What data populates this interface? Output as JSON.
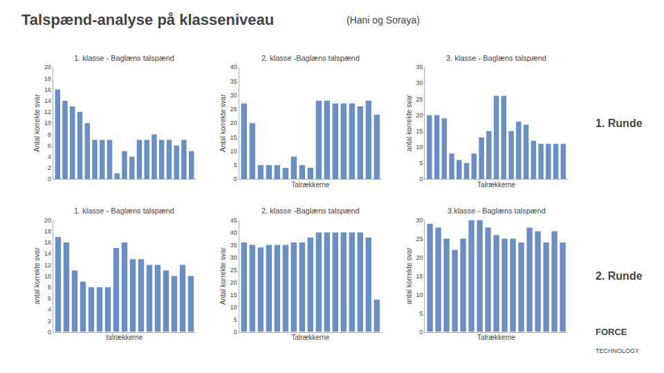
{
  "title": "Talspænd-analyse på klasseniveau",
  "subtitle": "(Hani og Soraya)",
  "annotations": [
    "1. Runde",
    "2. Runde",
    "FORCE",
    "TECHNOLOGY"
  ],
  "chart_data": [
    {
      "type": "bar",
      "title": "1. klasse - Baglæns talspænd",
      "ylabel": "Antal korrekte svar",
      "categories": [
        null,
        null,
        null,
        null,
        null,
        null,
        null,
        null,
        null,
        null,
        null,
        null,
        null,
        null,
        null,
        null,
        null,
        null,
        null
      ],
      "values": [
        16,
        14,
        13,
        12,
        10,
        7,
        7,
        7,
        1,
        5,
        4,
        7,
        7,
        8,
        7,
        7,
        6,
        7,
        5
      ],
      "color": "#6b8fc2",
      "ylim": [
        0,
        20
      ],
      "yticks": [
        0,
        2,
        4,
        6,
        8,
        10,
        12,
        14,
        16,
        18,
        20
      ],
      "grid": false,
      "tick_labels": "y"
    },
    {
      "type": "bar",
      "title": "2. klasse -Baglæns talspænd",
      "ylabel": "Antal korrekte svar",
      "xlabel": "Talrækkerne",
      "categories": [
        null,
        null,
        null,
        null,
        null,
        null,
        null,
        null,
        null,
        null,
        null,
        null,
        null,
        null,
        null,
        null,
        null
      ],
      "values": [
        27,
        20,
        5,
        5,
        5,
        4,
        8,
        5,
        4,
        28,
        28,
        27,
        27,
        27,
        26,
        28,
        23
      ],
      "color": "#6b8fc2",
      "ylim": [
        0,
        40
      ],
      "yticks": [
        0,
        5,
        10,
        15,
        20,
        25,
        30,
        35,
        40
      ],
      "grid": false,
      "tick_labels": "y"
    },
    {
      "type": "bar",
      "title": "3. klasse - Baglæns talspænd",
      "ylabel": "antal korrekte svar",
      "xlabel": "Talrækkerne",
      "categories": [
        null,
        null,
        null,
        null,
        null,
        null,
        null,
        null,
        null,
        null,
        null,
        null,
        null,
        null,
        null,
        null,
        null,
        null,
        null
      ],
      "values": [
        20,
        20,
        19,
        8,
        6,
        5,
        8,
        13,
        15,
        26,
        26,
        15,
        18,
        17,
        12,
        11,
        11,
        11,
        11
      ],
      "color": "#6b8fc2",
      "ylim": [
        0,
        35
      ],
      "yticks": [
        0,
        5,
        10,
        15,
        20,
        25,
        30,
        35
      ],
      "grid": false,
      "tick_labels": "y"
    },
    {
      "type": "bar",
      "title": "1. klasse - Baglæns talspænd",
      "ylabel": "antal korrekte svar",
      "xlabel": "talrækkerne",
      "categories": [
        null,
        null,
        null,
        null,
        null,
        null,
        null,
        null,
        null,
        null,
        null,
        null,
        null,
        null,
        null,
        null,
        null
      ],
      "values": [
        17,
        16,
        11,
        9,
        8,
        8,
        8,
        15,
        16,
        13,
        13,
        12,
        12,
        11,
        10,
        12,
        10
      ],
      "color": "#6b8fc2",
      "ylim": [
        0,
        20
      ],
      "yticks": [
        0,
        2,
        4,
        6,
        8,
        10,
        12,
        14,
        16,
        18,
        20
      ],
      "grid": false,
      "tick_labels": "y"
    },
    {
      "type": "bar",
      "title": "2. klasse -Baglæns talspænd",
      "ylabel": "Antal korrekte svar",
      "xlabel": "Talrækkerne",
      "categories": [
        null,
        null,
        null,
        null,
        null,
        null,
        null,
        null,
        null,
        null,
        null,
        null,
        null,
        null,
        null,
        null,
        null
      ],
      "values": [
        36,
        35,
        34,
        35,
        35,
        35,
        36,
        36,
        38,
        40,
        40,
        40,
        40,
        40,
        40,
        38,
        13
      ],
      "color": "#6b8fc2",
      "ylim": [
        0,
        45
      ],
      "yticks": [
        0,
        5,
        10,
        15,
        20,
        25,
        30,
        35,
        40,
        45
      ],
      "grid": false,
      "tick_labels": "y"
    },
    {
      "type": "bar",
      "title": "3.klasse - Baglæns talspænd",
      "ylabel": "antal korrekte svar",
      "xlabel": "Talrækkerne",
      "categories": [
        null,
        null,
        null,
        null,
        null,
        null,
        null,
        null,
        null,
        null,
        null,
        null,
        null,
        null,
        null,
        null,
        null
      ],
      "values": [
        29,
        28,
        25,
        22,
        25,
        30,
        30,
        28,
        26,
        25,
        25,
        24,
        28,
        27,
        24,
        27,
        24
      ],
      "color": "#6b8fc2",
      "ylim": [
        0,
        30
      ],
      "yticks": [
        0,
        5,
        10,
        15,
        20,
        25,
        30
      ],
      "grid": false,
      "tick_labels": "y"
    }
  ]
}
